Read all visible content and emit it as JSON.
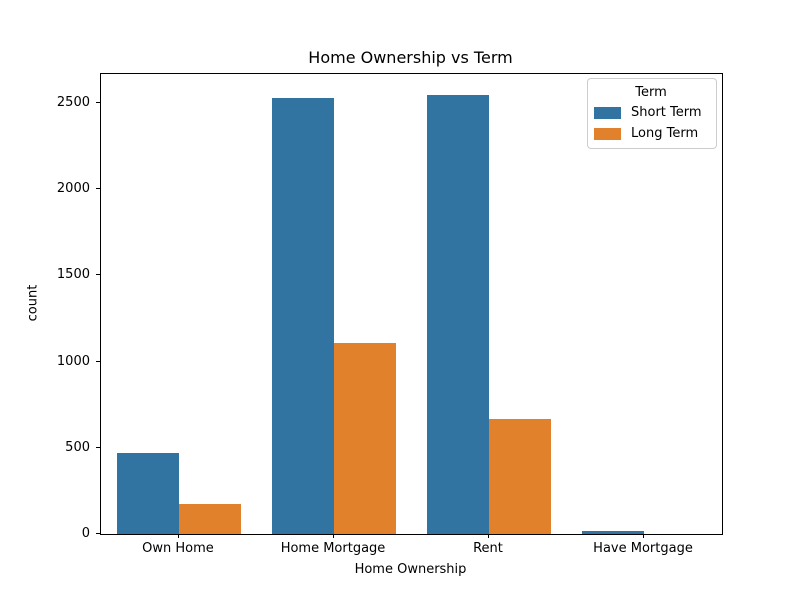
{
  "figure": {
    "background": "#ffffff",
    "text_color": "#000000"
  },
  "chart_data": {
    "type": "bar",
    "title": "Home Ownership vs Term",
    "xlabel": "Home Ownership",
    "ylabel": "count",
    "categories": [
      "Own Home",
      "Home Mortgage",
      "Rent",
      "Have Mortgage"
    ],
    "series": [
      {
        "name": "Short Term",
        "color": "#3274a1",
        "values": [
          470,
          2530,
          2545,
          15
        ]
      },
      {
        "name": "Long Term",
        "color": "#e1812c",
        "values": [
          175,
          1110,
          665,
          0
        ]
      }
    ],
    "ylim": [
      0,
      2668
    ],
    "yticks": [
      0,
      500,
      1000,
      1500,
      2000,
      2500
    ],
    "grid": false,
    "legend": {
      "title": "Term",
      "position": "upper right"
    }
  }
}
